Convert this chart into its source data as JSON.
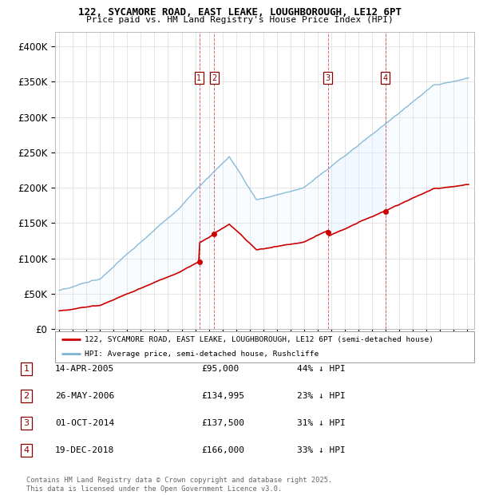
{
  "title": "122, SYCAMORE ROAD, EAST LEAKE, LOUGHBOROUGH, LE12 6PT",
  "subtitle": "Price paid vs. HM Land Registry's House Price Index (HPI)",
  "ylim": [
    0,
    420000
  ],
  "yticks": [
    0,
    50000,
    100000,
    150000,
    200000,
    250000,
    300000,
    350000,
    400000
  ],
  "ytick_labels": [
    "£0",
    "£50K",
    "£100K",
    "£150K",
    "£200K",
    "£250K",
    "£300K",
    "£350K",
    "£400K"
  ],
  "legend_line1": "122, SYCAMORE ROAD, EAST LEAKE, LOUGHBOROUGH, LE12 6PT (semi-detached house)",
  "legend_line2": "HPI: Average price, semi-detached house, Rushcliffe",
  "footer": "Contains HM Land Registry data © Crown copyright and database right 2025.\nThis data is licensed under the Open Government Licence v3.0.",
  "transactions": [
    {
      "num": 1,
      "date": "14-APR-2005",
      "price": "£95,000",
      "pct": "44% ↓ HPI",
      "year": 2005.29,
      "price_val": 95000
    },
    {
      "num": 2,
      "date": "26-MAY-2006",
      "price": "£134,995",
      "pct": "23% ↓ HPI",
      "year": 2006.4,
      "price_val": 134995
    },
    {
      "num": 3,
      "date": "01-OCT-2014",
      "price": "£137,500",
      "pct": "31% ↓ HPI",
      "year": 2014.75,
      "price_val": 137500
    },
    {
      "num": 4,
      "date": "19-DEC-2018",
      "price": "£166,000",
      "pct": "33% ↓ HPI",
      "year": 2018.96,
      "price_val": 166000
    }
  ],
  "hpi_color": "#7ab3d4",
  "price_color": "#cc0000",
  "shade_color": "#ddeeff",
  "background_color": "#ffffff",
  "grid_color": "#cccccc"
}
